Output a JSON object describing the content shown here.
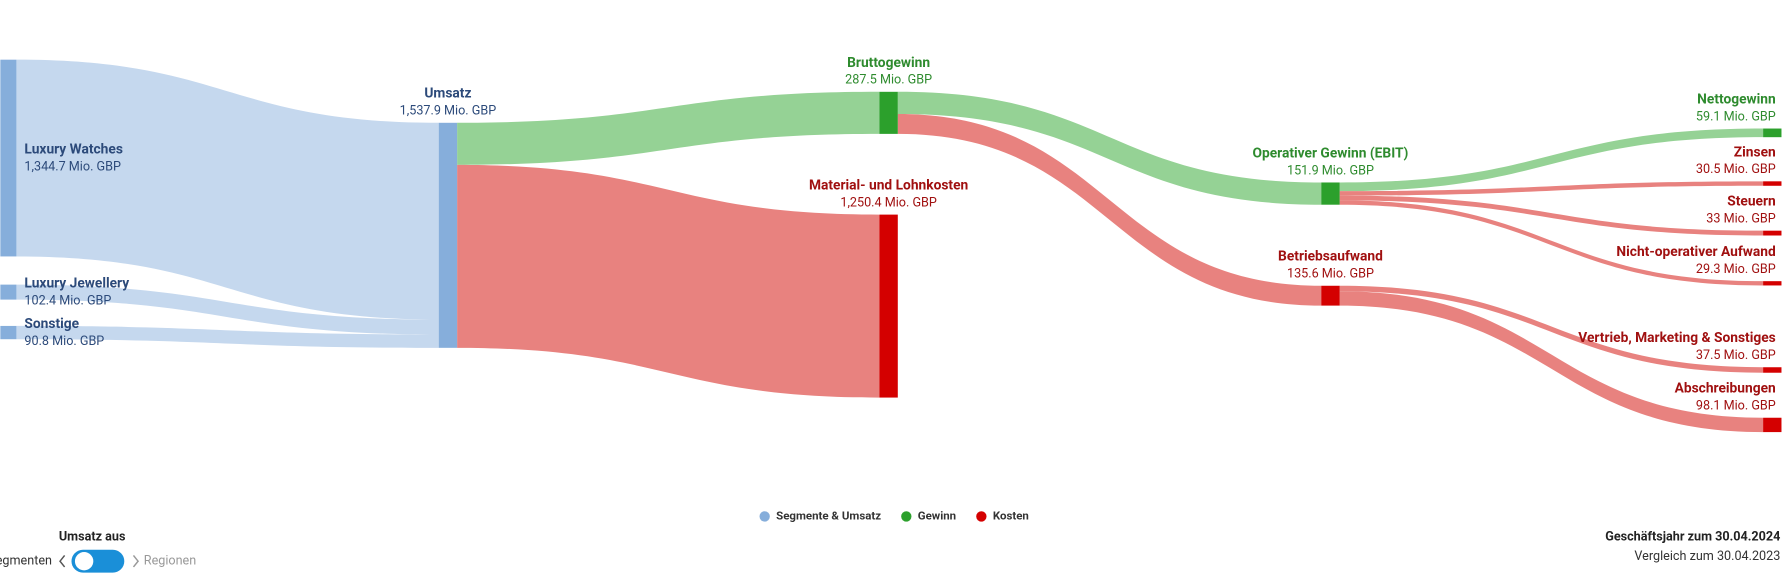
{
  "chart_data": {
    "type": "sankey",
    "nodes": [
      {
        "name": "Luxury Watches",
        "value": 1344.7,
        "value_label": "1,344.7 Mio. GBP",
        "group": 0
      },
      {
        "name": "Luxury Jewellery",
        "value": 102.4,
        "value_label": "102.4 Mio. GBP",
        "group": 0
      },
      {
        "name": "Sonstige",
        "value": 90.8,
        "value_label": "90.8 Mio. GBP",
        "group": 0
      },
      {
        "name": "Umsatz",
        "value": 1537.9,
        "value_label": "1,537.9 Mio. GBP",
        "group": 0
      },
      {
        "name": "Bruttogewinn",
        "value": 287.5,
        "value_label": "287.5 Mio. GBP",
        "group": 1
      },
      {
        "name": "Material- und Lohnkosten",
        "value": 1250.4,
        "value_label": "1,250.4 Mio. GBP",
        "group": 2
      },
      {
        "name": "Operativer Gewinn (EBIT)",
        "value": 151.9,
        "value_label": "151.9 Mio. GBP",
        "group": 1
      },
      {
        "name": "Betriebsaufwand",
        "value": 135.6,
        "value_label": "135.6 Mio. GBP",
        "group": 2
      },
      {
        "name": "Nettogewinn",
        "value": 59.1,
        "value_label": "59.1 Mio. GBP",
        "group": 1
      },
      {
        "name": "Zinsen",
        "value": 30.5,
        "value_label": "30.5 Mio. GBP",
        "group": 2
      },
      {
        "name": "Steuern",
        "value": 33,
        "value_label": "33 Mio. GBP",
        "group": 2
      },
      {
        "name": "Nicht-operativer Aufwand",
        "value": 29.3,
        "value_label": "29.3 Mio. GBP",
        "group": 2
      },
      {
        "name": "Vertrieb, Marketing & Sonstiges",
        "value": 37.5,
        "value_label": "37.5 Mio. GBP",
        "group": 2
      },
      {
        "name": "Abschreibungen",
        "value": 98.1,
        "value_label": "98.1 Mio. GBP",
        "group": 2
      }
    ],
    "links": [
      {
        "source": 0,
        "target": 3,
        "value": 1344.7
      },
      {
        "source": 1,
        "target": 3,
        "value": 102.4
      },
      {
        "source": 2,
        "target": 3,
        "value": 90.8
      },
      {
        "source": 3,
        "target": 4,
        "value": 287.5
      },
      {
        "source": 3,
        "target": 5,
        "value": 1250.4
      },
      {
        "source": 4,
        "target": 6,
        "value": 151.9
      },
      {
        "source": 4,
        "target": 7,
        "value": 135.6
      },
      {
        "source": 6,
        "target": 8,
        "value": 59.1
      },
      {
        "source": 6,
        "target": 9,
        "value": 30.5
      },
      {
        "source": 6,
        "target": 10,
        "value": 33
      },
      {
        "source": 6,
        "target": 11,
        "value": 29.3
      },
      {
        "source": 7,
        "target": 12,
        "value": 37.5
      },
      {
        "source": 7,
        "target": 13,
        "value": 98.1
      }
    ],
    "legend": [
      {
        "name": "Segmente & Umsatz",
        "color": "#86aedb",
        "link_color": "#c5d8ee",
        "label_color": "#2c4a7a"
      },
      {
        "name": "Gewinn",
        "color": "#2ca02c",
        "link_color": "#95d295",
        "label_color": "#2e8b2e"
      },
      {
        "name": "Kosten",
        "color": "#d40000",
        "link_color": "#e8827f",
        "label_color": "#a01010"
      }
    ]
  },
  "controls": {
    "title": "Umsatz aus",
    "left_option": "Segmenten",
    "right_option": "Regionen"
  },
  "footer": {
    "fiscal_year": "Geschäftsjahr zum 30.04.2024",
    "comparison": "Vergleich zum 30.04.2023"
  }
}
